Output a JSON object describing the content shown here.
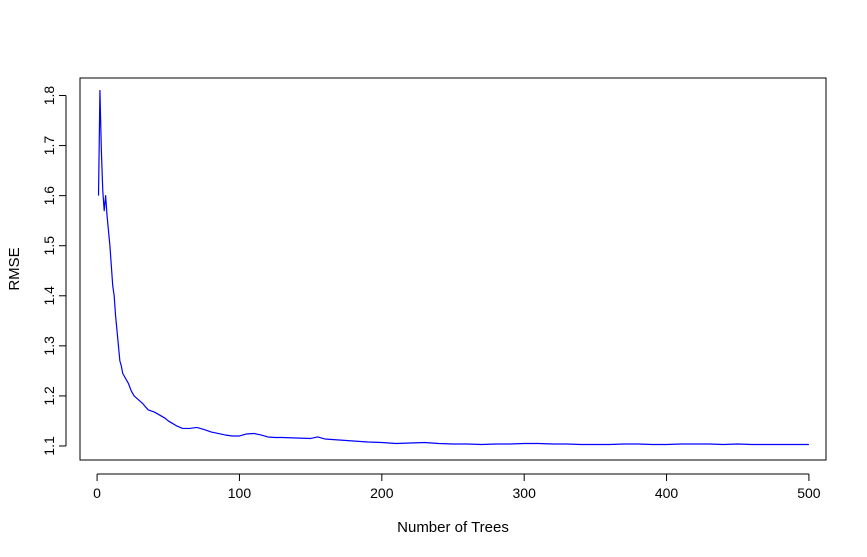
{
  "chart_data": {
    "type": "line",
    "title": "",
    "xlabel": "Number of Trees",
    "ylabel": "RMSE",
    "xlim": [
      -12,
      512
    ],
    "ylim": [
      1.072,
      1.835
    ],
    "x_ticks": [
      0,
      100,
      200,
      300,
      400,
      500
    ],
    "y_ticks": [
      1.1,
      1.2,
      1.3,
      1.4,
      1.5,
      1.6,
      1.7,
      1.8
    ],
    "x_tick_labels": [
      "0",
      "100",
      "200",
      "300",
      "400",
      "500"
    ],
    "y_tick_labels": [
      "1.1",
      "1.2",
      "1.3",
      "1.4",
      "1.5",
      "1.6",
      "1.7",
      "1.8"
    ],
    "grid": false,
    "series": [
      {
        "color": "#0000ff",
        "x": [
          1,
          2,
          3,
          4,
          5,
          6,
          7,
          8,
          9,
          10,
          11,
          12,
          13,
          14,
          15,
          16,
          17,
          18,
          19,
          20,
          22,
          24,
          26,
          28,
          30,
          32,
          34,
          36,
          38,
          40,
          42,
          45,
          48,
          50,
          53,
          56,
          60,
          65,
          70,
          75,
          80,
          85,
          90,
          95,
          100,
          105,
          110,
          115,
          120,
          125,
          130,
          140,
          150,
          155,
          160,
          170,
          180,
          190,
          200,
          210,
          220,
          230,
          240,
          250,
          260,
          270,
          280,
          290,
          300,
          310,
          320,
          330,
          340,
          350,
          360,
          370,
          380,
          390,
          400,
          410,
          420,
          430,
          440,
          450,
          460,
          470,
          480,
          490,
          500
        ],
        "y": [
          1.6,
          1.81,
          1.69,
          1.61,
          1.57,
          1.6,
          1.56,
          1.53,
          1.5,
          1.46,
          1.42,
          1.4,
          1.36,
          1.33,
          1.3,
          1.27,
          1.26,
          1.245,
          1.24,
          1.235,
          1.225,
          1.21,
          1.2,
          1.195,
          1.19,
          1.185,
          1.178,
          1.172,
          1.17,
          1.168,
          1.165,
          1.16,
          1.155,
          1.15,
          1.145,
          1.14,
          1.135,
          1.135,
          1.137,
          1.133,
          1.128,
          1.125,
          1.122,
          1.12,
          1.12,
          1.124,
          1.125,
          1.122,
          1.118,
          1.117,
          1.117,
          1.116,
          1.115,
          1.118,
          1.114,
          1.112,
          1.11,
          1.108,
          1.107,
          1.105,
          1.106,
          1.107,
          1.105,
          1.104,
          1.104,
          1.103,
          1.104,
          1.104,
          1.105,
          1.105,
          1.104,
          1.104,
          1.103,
          1.103,
          1.103,
          1.104,
          1.104,
          1.103,
          1.103,
          1.104,
          1.104,
          1.104,
          1.103,
          1.104,
          1.103,
          1.103,
          1.103,
          1.103,
          1.103
        ]
      }
    ]
  }
}
